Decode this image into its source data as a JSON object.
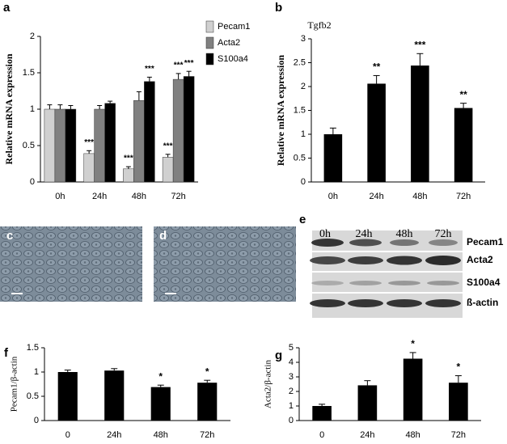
{
  "chart_data": [
    {
      "type": "bar",
      "label": "a",
      "y_label": "Relative mRNA expression",
      "categories": [
        "0h",
        "24h",
        "48h",
        "72h"
      ],
      "series": [
        {
          "name": "Pecam1",
          "color": "#d0d0d0",
          "values": [
            1.0,
            0.39,
            0.18,
            0.34
          ],
          "errors": [
            0.06,
            0.04,
            0.03,
            0.04
          ],
          "significance": [
            null,
            "***",
            "***",
            "***"
          ]
        },
        {
          "name": "Acta2",
          "color": "#808080",
          "values": [
            1.0,
            1.0,
            1.12,
            1.41
          ],
          "errors": [
            0.06,
            0.05,
            0.12,
            0.08
          ],
          "significance": [
            null,
            null,
            null,
            "***"
          ]
        },
        {
          "name": "S100a4",
          "color": "#000000",
          "values": [
            1.0,
            1.08,
            1.38,
            1.45
          ],
          "errors": [
            0.05,
            0.03,
            0.06,
            0.07
          ],
          "significance": [
            null,
            null,
            "***",
            "***"
          ]
        }
      ],
      "ylim": [
        0,
        2
      ],
      "yticks": [
        0,
        0.5,
        1,
        1.5,
        2
      ]
    },
    {
      "type": "bar",
      "label": "b",
      "title": "Tgfb2",
      "y_label": "Relative mRNA expression",
      "categories": [
        "0h",
        "24h",
        "48h",
        "72h"
      ],
      "color": "#000000",
      "values": [
        1.0,
        2.06,
        2.44,
        1.55
      ],
      "errors": [
        0.13,
        0.17,
        0.25,
        0.1
      ],
      "significance": [
        null,
        "**",
        "***",
        "**"
      ],
      "ylim": [
        0,
        3
      ],
      "yticks": [
        0,
        0.5,
        1,
        1.5,
        2,
        2.5,
        3
      ]
    },
    {
      "type": "bar",
      "label": "f",
      "y_label": "Pecam1/β-actin",
      "categories": [
        "0",
        "24h",
        "48h",
        "72h"
      ],
      "color": "#000000",
      "values": [
        1.0,
        1.03,
        0.69,
        0.78
      ],
      "errors": [
        0.04,
        0.04,
        0.04,
        0.05
      ],
      "significance": [
        null,
        null,
        "*",
        "*"
      ],
      "ylim": [
        0,
        1.5
      ],
      "yticks": [
        0,
        0.5,
        1,
        1.5
      ]
    },
    {
      "type": "bar",
      "label": "g",
      "y_label": "Acta2/β-actin",
      "categories": [
        "0",
        "24h",
        "48h",
        "72h"
      ],
      "color": "#000000",
      "values": [
        1.0,
        2.42,
        4.25,
        2.6
      ],
      "errors": [
        0.12,
        0.32,
        0.42,
        0.48
      ],
      "significance": [
        null,
        null,
        "*",
        "*"
      ],
      "ylim": [
        0,
        5
      ],
      "yticks": [
        0,
        1,
        2,
        3,
        4,
        5
      ]
    }
  ],
  "images": [
    {
      "label": "c"
    },
    {
      "label": "d"
    }
  ],
  "blot": {
    "label": "e",
    "lanes": [
      "0h",
      "24h",
      "48h",
      "72h"
    ],
    "rows": [
      "Pecam1",
      "Acta2",
      "S100a4",
      "ß-actin"
    ]
  }
}
